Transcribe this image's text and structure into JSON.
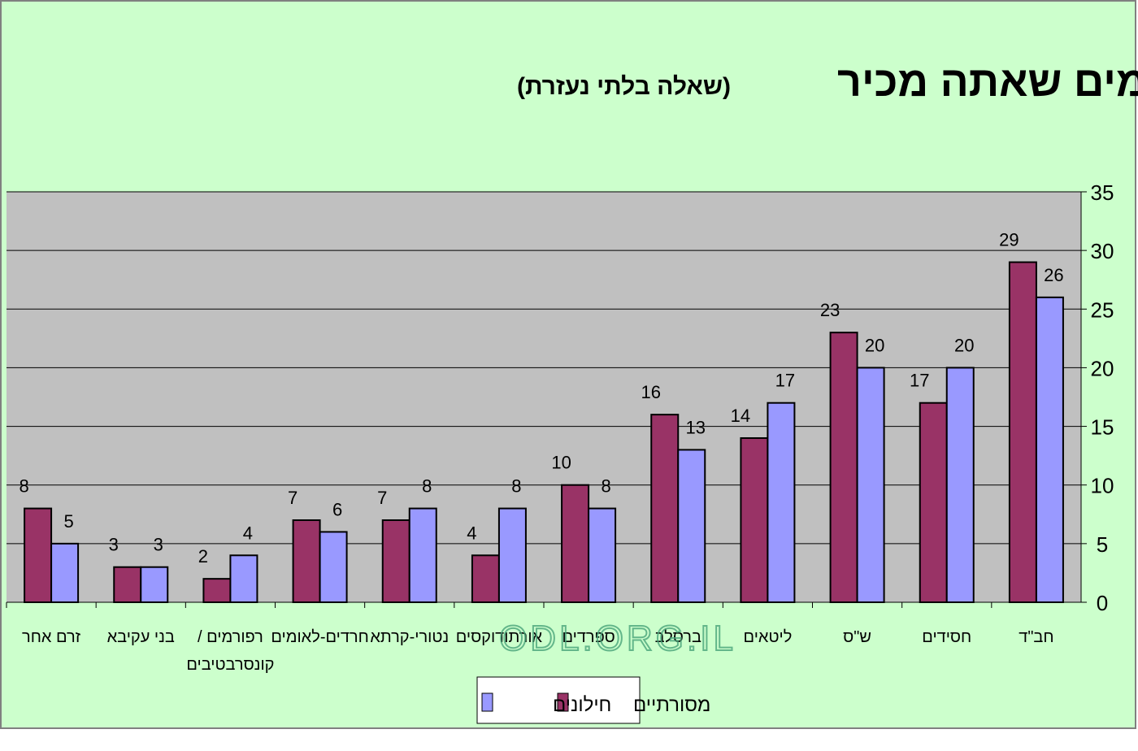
{
  "chart_data": {
    "type": "bar",
    "title": "הזרמים שאתה מכיר",
    "subtitle": "(שאלה בלתי נעזרת)",
    "direction": "rtl",
    "categories": [
      "חב\"ד",
      "חסידים",
      "ש\"ס",
      "ליטאים",
      "ברסלב",
      "ספרדים",
      "אורתודוקסים",
      "נטורי-קרתא",
      "חרדים-לאומים",
      "רפורמים / קונסרבטיבים",
      "בני עקיבא",
      "זרם אחר"
    ],
    "series": [
      {
        "name": "מסורתיים",
        "color": "#993366",
        "values": [
          29,
          17,
          23,
          14,
          16,
          10,
          4,
          7,
          7,
          2,
          3,
          8
        ]
      },
      {
        "name": "חילונים",
        "color": "#9999ff",
        "values": [
          26,
          20,
          20,
          17,
          13,
          8,
          8,
          8,
          6,
          4,
          3,
          5
        ]
      }
    ],
    "ylim": [
      0,
      35
    ],
    "yticks": [
      0,
      5,
      10,
      15,
      20,
      25,
      30,
      35
    ],
    "grid": true,
    "legend_placement": "bottom-center",
    "watermark": "ODL.ORG.IL",
    "colors": {
      "background": "#ccffcc",
      "plot_area": "#c0c0c0"
    }
  }
}
